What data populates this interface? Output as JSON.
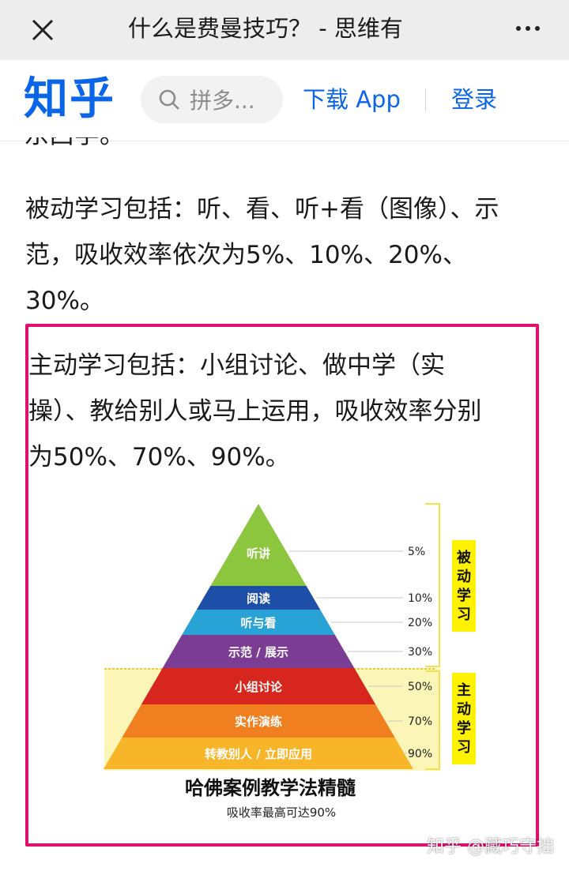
{
  "topbar": {
    "title": "什么是费曼技巧？ - 思维有",
    "close_icon": "close-icon",
    "more_icon": "more-icon"
  },
  "zhihu": {
    "logo": "知乎",
    "search_placeholder": "拼多...",
    "download": "下载 App",
    "login": "登录",
    "brand_color": "#0a66e6"
  },
  "article": {
    "cut_text": "东西学。",
    "passive": "被动学习包括：听、看、听+看（图像）、示范，吸收效率依次为5%、10%、20%、30%。",
    "passive_lines": [
      "被动学习包括：听、看、听+看（图像）、示",
      "范，吸收效率依次为5%、10%、20%、",
      "30%。"
    ],
    "active_lines": [
      "主动学习包括：小组讨论、做中学（实",
      "操）、教给别人或马上运用，吸收效率分别",
      "为50%、70%、90%。"
    ]
  },
  "figure": {
    "layers": [
      {
        "label": "听讲",
        "percent": "5%",
        "color": "#8cc63f"
      },
      {
        "label": "阅读",
        "percent": "10%",
        "color": "#1e4fa8"
      },
      {
        "label": "听与看",
        "percent": "20%",
        "color": "#29a3d6"
      },
      {
        "label": "示范 / 展示",
        "percent": "30%",
        "color": "#7b3d94"
      },
      {
        "label": "小组讨论",
        "percent": "50%",
        "color": "#d7261e"
      },
      {
        "label": "实作演练",
        "percent": "70%",
        "color": "#f07f1f"
      },
      {
        "label": "转教别人 / 立即应用",
        "percent": "90%",
        "color": "#f7b52a"
      }
    ],
    "passive_tag": "被动学习",
    "active_tag": "主动学习",
    "title": "哈佛案例教学法精髓",
    "subtitle": "吸收率最高可达90%",
    "highlight_color": "#f5e83a"
  },
  "watermark": "知乎 @藏巧守拙"
}
